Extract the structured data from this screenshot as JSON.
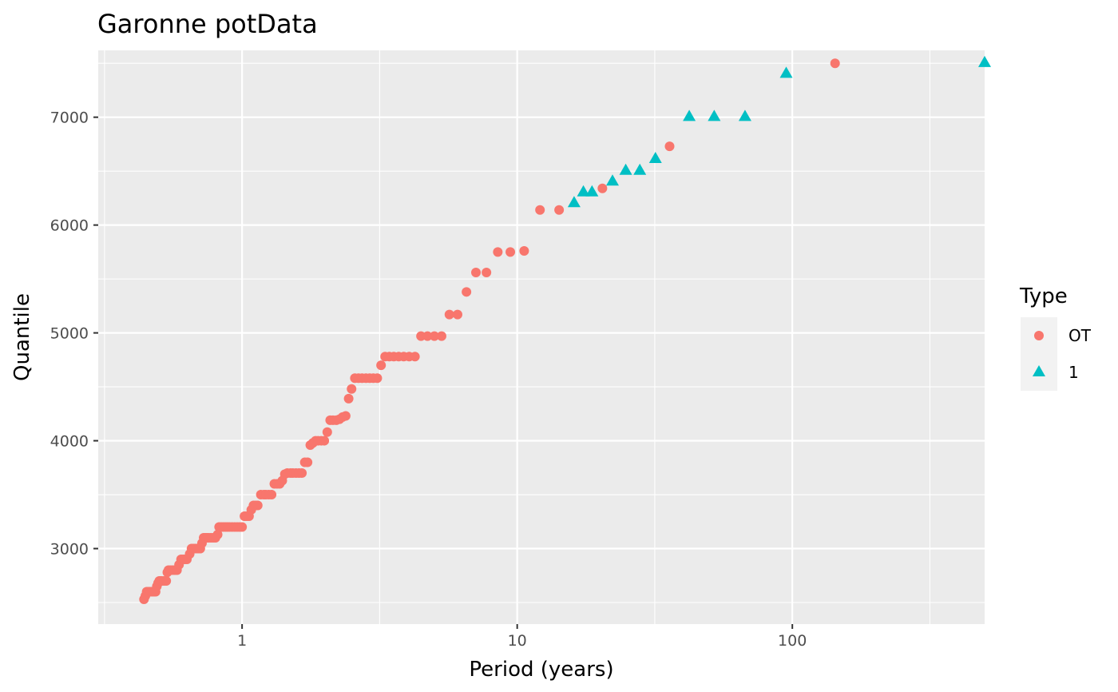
{
  "chart_data": {
    "type": "scatter",
    "title": "Garonne potData",
    "xlabel": "Period (years)",
    "ylabel": "Quantile",
    "x_scale": "log",
    "xlim": [
      0.3,
      500
    ],
    "ylim": [
      2300,
      7620
    ],
    "x_ticks": [
      {
        "value": 1,
        "label": "1"
      },
      {
        "value": 10,
        "label": "10"
      },
      {
        "value": 100,
        "label": "100"
      }
    ],
    "y_ticks": [
      {
        "value": 3000,
        "label": "3000"
      },
      {
        "value": 4000,
        "label": "4000"
      },
      {
        "value": 5000,
        "label": "5000"
      },
      {
        "value": 6000,
        "label": "6000"
      },
      {
        "value": 7000,
        "label": "7000"
      }
    ],
    "grid": true,
    "legend": {
      "title": "Type",
      "placement": "right"
    },
    "series": [
      {
        "name": "OT",
        "color": "#F8766D",
        "marker": "circle",
        "points": [
          [
            0.44,
            2530
          ],
          [
            0.445,
            2560
          ],
          [
            0.45,
            2600
          ],
          [
            0.455,
            2600
          ],
          [
            0.46,
            2600
          ],
          [
            0.465,
            2600
          ],
          [
            0.47,
            2600
          ],
          [
            0.475,
            2600
          ],
          [
            0.48,
            2600
          ],
          [
            0.485,
            2600
          ],
          [
            0.49,
            2650
          ],
          [
            0.495,
            2680
          ],
          [
            0.5,
            2700
          ],
          [
            0.505,
            2700
          ],
          [
            0.51,
            2700
          ],
          [
            0.52,
            2700
          ],
          [
            0.53,
            2700
          ],
          [
            0.535,
            2780
          ],
          [
            0.54,
            2800
          ],
          [
            0.55,
            2800
          ],
          [
            0.56,
            2800
          ],
          [
            0.57,
            2800
          ],
          [
            0.58,
            2800
          ],
          [
            0.59,
            2850
          ],
          [
            0.6,
            2900
          ],
          [
            0.61,
            2900
          ],
          [
            0.62,
            2900
          ],
          [
            0.63,
            2900
          ],
          [
            0.645,
            2950
          ],
          [
            0.655,
            3000
          ],
          [
            0.665,
            3000
          ],
          [
            0.675,
            3000
          ],
          [
            0.685,
            3000
          ],
          [
            0.695,
            3000
          ],
          [
            0.705,
            3000
          ],
          [
            0.715,
            3050
          ],
          [
            0.725,
            3100
          ],
          [
            0.735,
            3100
          ],
          [
            0.745,
            3100
          ],
          [
            0.755,
            3100
          ],
          [
            0.77,
            3100
          ],
          [
            0.785,
            3100
          ],
          [
            0.8,
            3100
          ],
          [
            0.815,
            3130
          ],
          [
            0.825,
            3200
          ],
          [
            0.84,
            3200
          ],
          [
            0.855,
            3200
          ],
          [
            0.87,
            3200
          ],
          [
            0.885,
            3200
          ],
          [
            0.9,
            3200
          ],
          [
            0.92,
            3200
          ],
          [
            0.94,
            3200
          ],
          [
            0.96,
            3200
          ],
          [
            0.98,
            3200
          ],
          [
            1.0,
            3200
          ],
          [
            1.02,
            3300
          ],
          [
            1.04,
            3300
          ],
          [
            1.06,
            3300
          ],
          [
            1.08,
            3360
          ],
          [
            1.1,
            3400
          ],
          [
            1.12,
            3400
          ],
          [
            1.14,
            3400
          ],
          [
            1.17,
            3500
          ],
          [
            1.2,
            3500
          ],
          [
            1.22,
            3500
          ],
          [
            1.25,
            3500
          ],
          [
            1.28,
            3500
          ],
          [
            1.31,
            3600
          ],
          [
            1.34,
            3600
          ],
          [
            1.37,
            3600
          ],
          [
            1.4,
            3630
          ],
          [
            1.43,
            3690
          ],
          [
            1.46,
            3700
          ],
          [
            1.5,
            3700
          ],
          [
            1.53,
            3700
          ],
          [
            1.57,
            3700
          ],
          [
            1.61,
            3700
          ],
          [
            1.65,
            3700
          ],
          [
            1.69,
            3800
          ],
          [
            1.73,
            3800
          ],
          [
            1.77,
            3960
          ],
          [
            1.81,
            3980
          ],
          [
            1.85,
            4000
          ],
          [
            1.89,
            4000
          ],
          [
            1.94,
            4000
          ],
          [
            1.99,
            4000
          ],
          [
            2.04,
            4080
          ],
          [
            2.09,
            4190
          ],
          [
            2.14,
            4190
          ],
          [
            2.2,
            4190
          ],
          [
            2.26,
            4200
          ],
          [
            2.32,
            4220
          ],
          [
            2.38,
            4230
          ],
          [
            2.44,
            4390
          ],
          [
            2.5,
            4480
          ],
          [
            2.57,
            4580
          ],
          [
            2.65,
            4580
          ],
          [
            2.73,
            4580
          ],
          [
            2.82,
            4580
          ],
          [
            2.91,
            4580
          ],
          [
            3.0,
            4580
          ],
          [
            3.1,
            4580
          ],
          [
            3.2,
            4700
          ],
          [
            3.31,
            4780
          ],
          [
            3.43,
            4780
          ],
          [
            3.56,
            4780
          ],
          [
            3.71,
            4780
          ],
          [
            3.87,
            4780
          ],
          [
            4.05,
            4780
          ],
          [
            4.25,
            4780
          ],
          [
            4.47,
            4970
          ],
          [
            4.72,
            4970
          ],
          [
            5.0,
            4970
          ],
          [
            5.31,
            4970
          ],
          [
            5.67,
            5170
          ],
          [
            6.07,
            5170
          ],
          [
            6.54,
            5380
          ],
          [
            7.08,
            5560
          ],
          [
            7.73,
            5560
          ],
          [
            8.5,
            5750
          ],
          [
            9.44,
            5750
          ],
          [
            10.6,
            5760
          ],
          [
            12.1,
            6140
          ],
          [
            14.2,
            6140
          ],
          [
            20.4,
            6340
          ],
          [
            35.8,
            6730
          ],
          [
            143,
            7500
          ]
        ]
      },
      {
        "name": "1",
        "color": "#00BFC4",
        "marker": "triangle",
        "points": [
          [
            16.1,
            6210
          ],
          [
            17.4,
            6310
          ],
          [
            18.7,
            6310
          ],
          [
            22.2,
            6410
          ],
          [
            24.8,
            6510
          ],
          [
            27.9,
            6510
          ],
          [
            31.8,
            6620
          ],
          [
            42.2,
            7010
          ],
          [
            52.0,
            7010
          ],
          [
            67.3,
            7010
          ],
          [
            95.0,
            7410
          ],
          [
            500,
            7510
          ]
        ]
      }
    ]
  }
}
